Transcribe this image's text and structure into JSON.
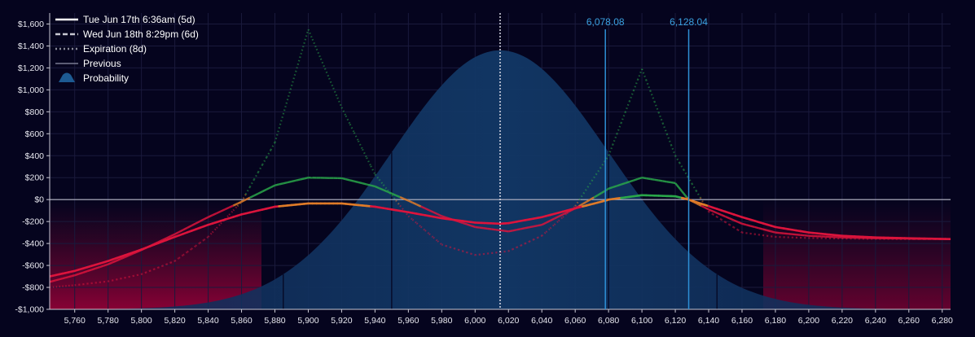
{
  "chart_data": {
    "type": "line",
    "title": "",
    "xlabel": "",
    "ylabel": "",
    "xlim": [
      5745,
      6285
    ],
    "ylim": [
      -1000,
      1700
    ],
    "grid": true,
    "legend_placement": "top-left",
    "x_ticks": [
      5760,
      5780,
      5800,
      5820,
      5840,
      5860,
      5880,
      5900,
      5920,
      5940,
      5960,
      5980,
      6000,
      6020,
      6040,
      6060,
      6080,
      6100,
      6120,
      6140,
      6160,
      6180,
      6200,
      6220,
      6240,
      6260,
      6280
    ],
    "x_tick_labels": [
      "5,760",
      "5,780",
      "5,800",
      "5,820",
      "5,840",
      "5,860",
      "5,880",
      "5,900",
      "5,920",
      "5,940",
      "5,960",
      "5,980",
      "6,000",
      "6,020",
      "6,040",
      "6,060",
      "6,080",
      "6,100",
      "6,120",
      "6,140",
      "6,160",
      "6,180",
      "6,200",
      "6,220",
      "6,240",
      "6,260",
      "6,280"
    ],
    "y_ticks": [
      -1000,
      -800,
      -600,
      -400,
      -200,
      0,
      200,
      400,
      600,
      800,
      1000,
      1200,
      1400,
      1600
    ],
    "y_tick_labels": [
      "-$1,000",
      "-$800",
      "-$600",
      "-$400",
      "-$200",
      "$0",
      "$200",
      "$400",
      "$600",
      "$800",
      "$1,000",
      "$1,200",
      "$1,400",
      "$1,600"
    ],
    "current_price": 6015,
    "markers": [
      {
        "label": "6,078.08",
        "x": 6078.08,
        "color": "#2e90d6"
      },
      {
        "label": "6,128.04",
        "x": 6128.04,
        "color": "#2e90d6"
      }
    ],
    "legend": [
      {
        "label": "Tue Jun 17th 6:36am (5d)",
        "style": "solid",
        "color": "#ffffff"
      },
      {
        "label": "Wed Jun 18th 8:29pm (6d)",
        "style": "dashed",
        "color": "#c8c8d2"
      },
      {
        "label": "Expiration (8d)",
        "style": "dotted",
        "color": "#8a8a99"
      },
      {
        "label": "Previous",
        "style": "thin",
        "color": "#7a7a92"
      },
      {
        "label": "Probability",
        "style": "area",
        "color": "#1d5a92"
      }
    ],
    "series": [
      {
        "name": "Tue Jun 17th 6:36am (5d)",
        "style": "solid",
        "x": [
          5745,
          5760,
          5780,
          5800,
          5820,
          5840,
          5860,
          5880,
          5900,
          5920,
          5940,
          5960,
          5980,
          6000,
          6015,
          6020,
          6040,
          6060,
          6078,
          6080,
          6100,
          6120,
          6128,
          6140,
          6160,
          6180,
          6200,
          6220,
          6240,
          6260,
          6285
        ],
        "y": [
          -700,
          -650,
          -560,
          -455,
          -340,
          -230,
          -135,
          -65,
          -35,
          -35,
          -65,
          -115,
          -170,
          -210,
          -220,
          -215,
          -160,
          -80,
          -10,
          0,
          40,
          30,
          0,
          -60,
          -160,
          -250,
          -300,
          -330,
          -345,
          -352,
          -360
        ]
      },
      {
        "name": "Wed Jun 18th 8:29pm (6d)",
        "style": "dashed",
        "x": [
          5745,
          5760,
          5780,
          5800,
          5820,
          5840,
          5860,
          5880,
          5900,
          5920,
          5940,
          5960,
          5980,
          6000,
          6020,
          6040,
          6060,
          6078,
          6080,
          6100,
          6120,
          6128,
          6140,
          6160,
          6180,
          6200,
          6220,
          6240,
          6260,
          6285
        ],
        "y": [
          -750,
          -690,
          -590,
          -460,
          -315,
          -160,
          -20,
          130,
          200,
          195,
          120,
          -10,
          -150,
          -250,
          -290,
          -230,
          -80,
          80,
          100,
          200,
          150,
          0,
          -90,
          -220,
          -300,
          -330,
          -345,
          -352,
          -356,
          -360
        ]
      },
      {
        "name": "Expiration (8d)",
        "style": "dotted",
        "x": [
          5745,
          5760,
          5780,
          5800,
          5820,
          5840,
          5860,
          5880,
          5900,
          5920,
          5940,
          5960,
          5980,
          6000,
          6020,
          6040,
          6060,
          6080,
          6100,
          6120,
          6140,
          6160,
          6180,
          6200,
          6220,
          6240,
          6260,
          6285
        ],
        "y": [
          -800,
          -780,
          -745,
          -680,
          -560,
          -340,
          -20,
          520,
          1550,
          840,
          230,
          -150,
          -410,
          -505,
          -470,
          -330,
          -60,
          400,
          1190,
          400,
          -110,
          -300,
          -340,
          -350,
          -355,
          -358,
          -360,
          -360
        ]
      }
    ],
    "probability": {
      "mean": 6015,
      "std": 65,
      "peak_y": 1360
    }
  }
}
